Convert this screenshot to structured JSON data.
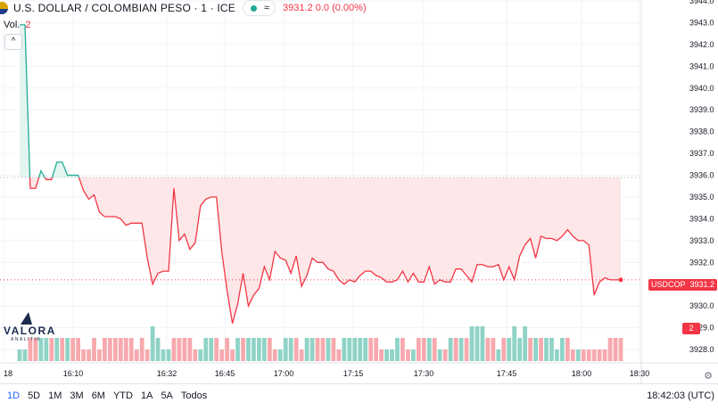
{
  "header": {
    "title": "U.S. DOLLAR / COLOMBIAN PESO · 1 · ICE",
    "price_text": "3931.2 0.0 (0.00%)"
  },
  "volume_label": {
    "label": "Vol.",
    "value": "2"
  },
  "logo": {
    "name": "VALORA",
    "sub": "ANALITIK"
  },
  "price_tag": {
    "symbol": "USDCOP",
    "price": "3931.2"
  },
  "volume_tag": "2",
  "bottom": {
    "ranges": [
      "1D",
      "5D",
      "1M",
      "3M",
      "6M",
      "YTD",
      "1A",
      "5A",
      "Todos"
    ],
    "active_range": "1D",
    "clock": "18:42:03 (UTC)"
  },
  "colors": {
    "down": "#f23645",
    "up": "#22ab94",
    "fill_down": "#fde7e8",
    "fill_up": "#e3f4f1",
    "vol_down": "#f7a9ad",
    "vol_up": "#8fd3c6"
  },
  "chart_data": {
    "type": "line",
    "y_ticks": [
      "3928.0",
      "3929.0",
      "3930.0",
      "3931.0",
      "3932.0",
      "3933.0",
      "3934.0",
      "3935.0",
      "3936.0",
      "3937.0",
      "3938.0",
      "3939.0",
      "3940.0",
      "3941.0",
      "3942.0",
      "3943.0",
      "3944.0"
    ],
    "x_ticks": [
      "18",
      "16:10",
      "16:32",
      "16:45",
      "17:00",
      "17:15",
      "17:30",
      "17:45",
      "18:00",
      "18:30"
    ],
    "baseline": 3935.9,
    "last": 3931.2,
    "price_series": [
      3942.9,
      3942.9,
      3935.4,
      3935.4,
      3936.2,
      3935.8,
      3935.8,
      3936.6,
      3936.6,
      3936.0,
      3936.0,
      3936.0,
      3935.3,
      3934.9,
      3935.1,
      3934.3,
      3934.1,
      3934.1,
      3934.1,
      3934.0,
      3933.7,
      3933.8,
      3933.8,
      3933.8,
      3932.2,
      3931.0,
      3931.5,
      3931.6,
      3931.6,
      3935.4,
      3933.0,
      3933.3,
      3932.6,
      3932.9,
      3934.6,
      3934.9,
      3935.0,
      3935.0,
      3932.5,
      3930.7,
      3929.2,
      3930.1,
      3931.5,
      3930.0,
      3930.5,
      3930.8,
      3931.8,
      3931.2,
      3932.5,
      3932.2,
      3932.1,
      3931.5,
      3932.3,
      3930.9,
      3931.4,
      3932.2,
      3932.0,
      3932.0,
      3931.7,
      3931.6,
      3931.2,
      3931.0,
      3931.2,
      3931.1,
      3931.4,
      3931.6,
      3931.6,
      3931.4,
      3931.3,
      3931.1,
      3931.1,
      3931.2,
      3931.6,
      3931.1,
      3931.5,
      3931.1,
      3931.1,
      3931.8,
      3931.0,
      3931.2,
      3931.1,
      3931.1,
      3931.7,
      3931.7,
      3931.4,
      3931.1,
      3931.9,
      3931.9,
      3931.8,
      3931.8,
      3931.9,
      3931.2,
      3931.8,
      3931.2,
      3932.3,
      3932.8,
      3933.1,
      3932.2,
      3933.2,
      3933.1,
      3933.1,
      3933.0,
      3933.2,
      3933.5,
      3933.2,
      3933.0,
      3933.0,
      3932.8,
      3930.5,
      3931.1,
      3931.3,
      3931.2,
      3931.2,
      3931.2
    ],
    "volumes": [
      1,
      1,
      2,
      2,
      2,
      2,
      2,
      2,
      2,
      2,
      2,
      2,
      1,
      1,
      2,
      1,
      2,
      2,
      2,
      2,
      2,
      2,
      1,
      2,
      1,
      3,
      2,
      1,
      1,
      2,
      2,
      2,
      2,
      1,
      1,
      2,
      2,
      2,
      1,
      2,
      1,
      2,
      2,
      2,
      2,
      2,
      2,
      2,
      1,
      1,
      2,
      2,
      2,
      1,
      2,
      2,
      2,
      2,
      2,
      2,
      1,
      2,
      2,
      2,
      2,
      2,
      2,
      2,
      1,
      1,
      1,
      2,
      2,
      1,
      1,
      2,
      2,
      2,
      2,
      1,
      1,
      2,
      2,
      2,
      2,
      3,
      3,
      3,
      2,
      2,
      1,
      2,
      2,
      3,
      2,
      3,
      2,
      2,
      2,
      2,
      2,
      1,
      2,
      2,
      1,
      1,
      1,
      1,
      1,
      1,
      1,
      2,
      2,
      2
    ],
    "volume_dirs": [
      "u",
      "u",
      "d",
      "d",
      "u",
      "u",
      "d",
      "u",
      "d",
      "u",
      "d",
      "d",
      "d",
      "d",
      "d",
      "d",
      "d",
      "d",
      "d",
      "d",
      "d",
      "d",
      "d",
      "d",
      "d",
      "u",
      "u",
      "u",
      "u",
      "d",
      "d",
      "d",
      "d",
      "d",
      "u",
      "u",
      "u",
      "d",
      "d",
      "d",
      "d",
      "u",
      "d",
      "u",
      "u",
      "u",
      "u",
      "d",
      "d",
      "u",
      "u",
      "u",
      "d",
      "d",
      "u",
      "u",
      "d",
      "d",
      "u",
      "d",
      "d",
      "u",
      "u",
      "u",
      "u",
      "u",
      "d",
      "d",
      "d",
      "u",
      "u",
      "u",
      "d",
      "d",
      "u",
      "d",
      "d",
      "u",
      "d",
      "u",
      "d",
      "u",
      "d",
      "u",
      "d",
      "u",
      "u",
      "u",
      "d",
      "d",
      "u",
      "d",
      "u",
      "u",
      "u",
      "u",
      "d",
      "u",
      "d",
      "u",
      "u",
      "u",
      "u",
      "d",
      "d",
      "u",
      "d",
      "d",
      "d",
      "d",
      "d",
      "d",
      "d",
      "d"
    ]
  }
}
